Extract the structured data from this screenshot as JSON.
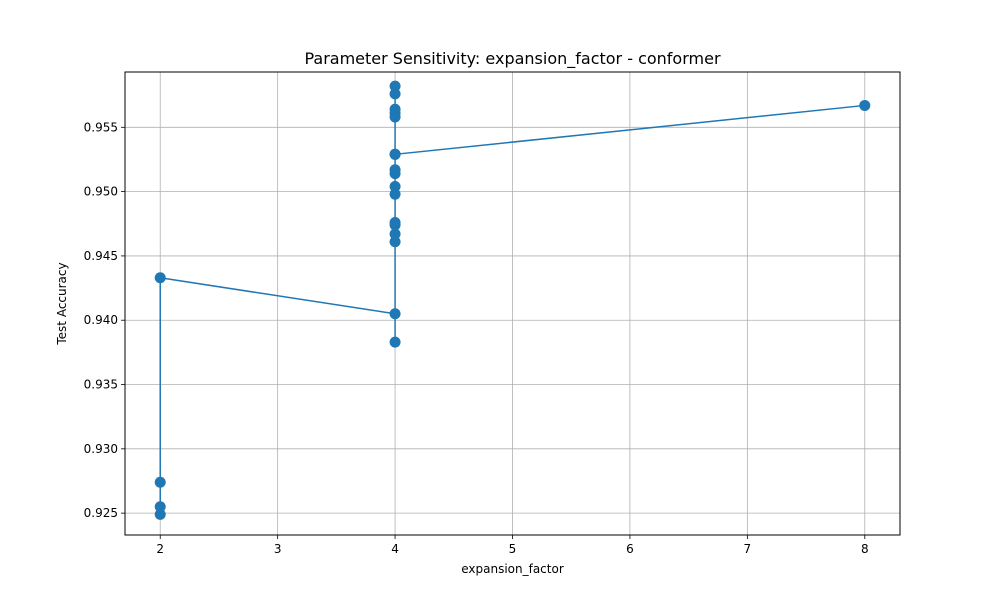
{
  "chart_data": {
    "type": "line",
    "title": "Parameter Sensitivity: expansion_factor - conformer",
    "xlabel": "expansion_factor",
    "ylabel": "Test Accuracy",
    "xlim": [
      1.7,
      8.3
    ],
    "ylim": [
      0.9233,
      0.9593
    ],
    "x_ticks": [
      2,
      3,
      4,
      5,
      6,
      7,
      8
    ],
    "y_ticks": [
      0.925,
      0.93,
      0.935,
      0.94,
      0.945,
      0.95,
      0.955
    ],
    "x_tick_labels": [
      "2",
      "3",
      "4",
      "5",
      "6",
      "7",
      "8"
    ],
    "y_tick_labels": [
      "0.925",
      "0.930",
      "0.935",
      "0.940",
      "0.945",
      "0.950",
      "0.955"
    ],
    "grid": true,
    "color": "#1f77b4",
    "series": [
      {
        "x": [
          2,
          2,
          2,
          2,
          4,
          4,
          4,
          4,
          4,
          4,
          4,
          4,
          4,
          4,
          4,
          4,
          4,
          4,
          4,
          4,
          4,
          8
        ],
        "values": [
          0.9249,
          0.9255,
          0.9274,
          0.9433,
          0.9405,
          0.9383,
          0.9461,
          0.9467,
          0.9474,
          0.9476,
          0.9498,
          0.9504,
          0.9514,
          0.9517,
          0.9529,
          0.9558,
          0.9561,
          0.9564,
          0.9576,
          0.9582,
          0.9529,
          0.9567
        ]
      }
    ]
  }
}
